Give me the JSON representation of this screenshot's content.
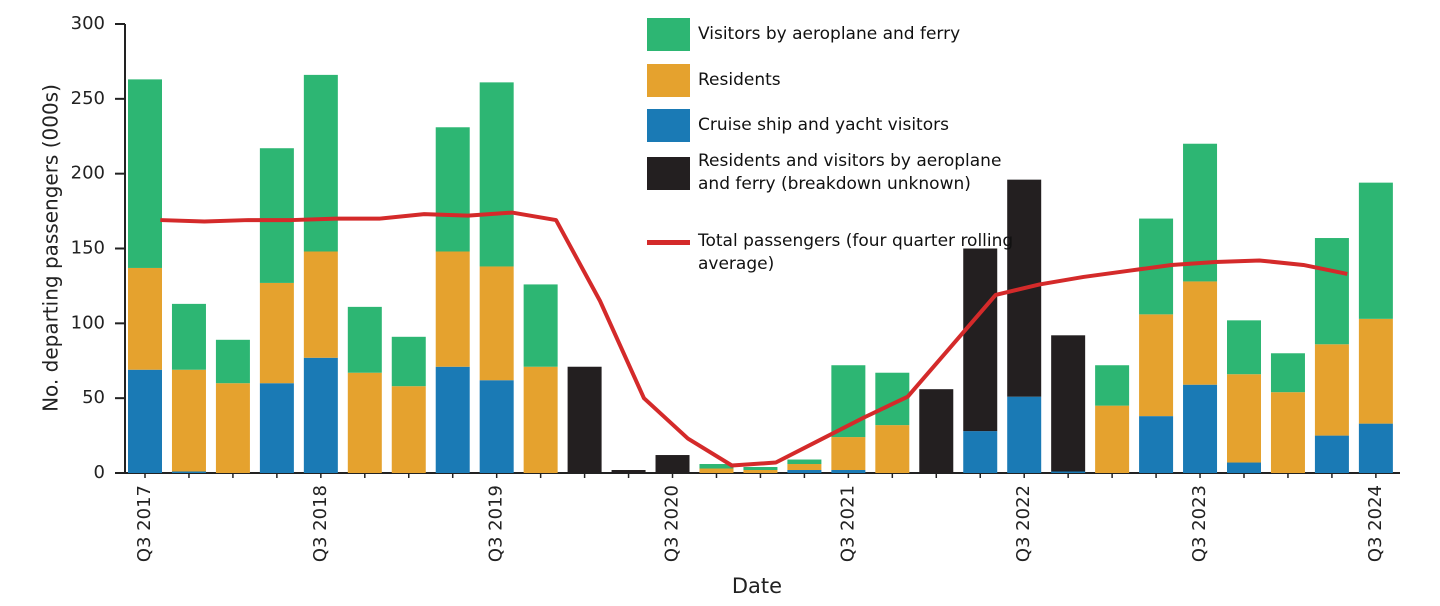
{
  "chart_data": {
    "type": "bar",
    "stacked": true,
    "ylabel": "No. departing passengers (000s)",
    "xlabel": "Date",
    "ylim": [
      0,
      300
    ],
    "yticks": [
      0,
      50,
      100,
      150,
      200,
      250,
      300
    ],
    "categories": [
      "Q3 2017",
      null,
      null,
      null,
      "Q3 2018",
      null,
      null,
      null,
      "Q3 2019",
      null,
      null,
      null,
      "Q3 2020",
      null,
      null,
      null,
      "Q3 2021",
      null,
      null,
      null,
      "Q3 2022",
      null,
      null,
      null,
      "Q3 2023",
      null,
      null,
      null,
      "Q3 2024"
    ],
    "series": [
      {
        "name": "Cruise ship and yacht visitors",
        "color": "#1a7ab5",
        "values": [
          69,
          1,
          null,
          60,
          77,
          null,
          null,
          71,
          62,
          null,
          null,
          null,
          null,
          null,
          null,
          2,
          2,
          null,
          null,
          28,
          51,
          1,
          null,
          38,
          59,
          7,
          null,
          25,
          33
        ]
      },
      {
        "name": "Residents",
        "color": "#e5a22e",
        "values": [
          68,
          68,
          60,
          67,
          71,
          67,
          58,
          77,
          76,
          71,
          null,
          null,
          null,
          3,
          2,
          4,
          22,
          32,
          null,
          null,
          null,
          null,
          45,
          68,
          69,
          59,
          54,
          61,
          70
        ]
      },
      {
        "name": "Residents and visitors by aeroplane and ferry (breakdown unknown)",
        "color": "#231f20",
        "values": [
          null,
          null,
          null,
          null,
          null,
          null,
          null,
          null,
          null,
          null,
          71,
          2,
          12,
          null,
          null,
          null,
          null,
          null,
          56,
          122,
          145,
          91,
          null,
          null,
          null,
          null,
          null,
          null,
          null
        ]
      },
      {
        "name": "Visitors by aeroplane and ferry",
        "color": "#2db673",
        "values": [
          126,
          44,
          29,
          90,
          118,
          44,
          33,
          83,
          123,
          55,
          null,
          null,
          null,
          3,
          2,
          3,
          48,
          35,
          null,
          null,
          null,
          null,
          27,
          64,
          92,
          36,
          26,
          71,
          91
        ]
      },
      {
        "name": "Total passengers (four quarter rolling average)",
        "color": "#d42a2a",
        "type": "line",
        "values": [
          169,
          168,
          169,
          169,
          170,
          170,
          173,
          172,
          174,
          169,
          115,
          50,
          23,
          5,
          7,
          22,
          37,
          51,
          85,
          119,
          126,
          131,
          135,
          139,
          141,
          142,
          139,
          133,
          null
        ]
      }
    ]
  }
}
